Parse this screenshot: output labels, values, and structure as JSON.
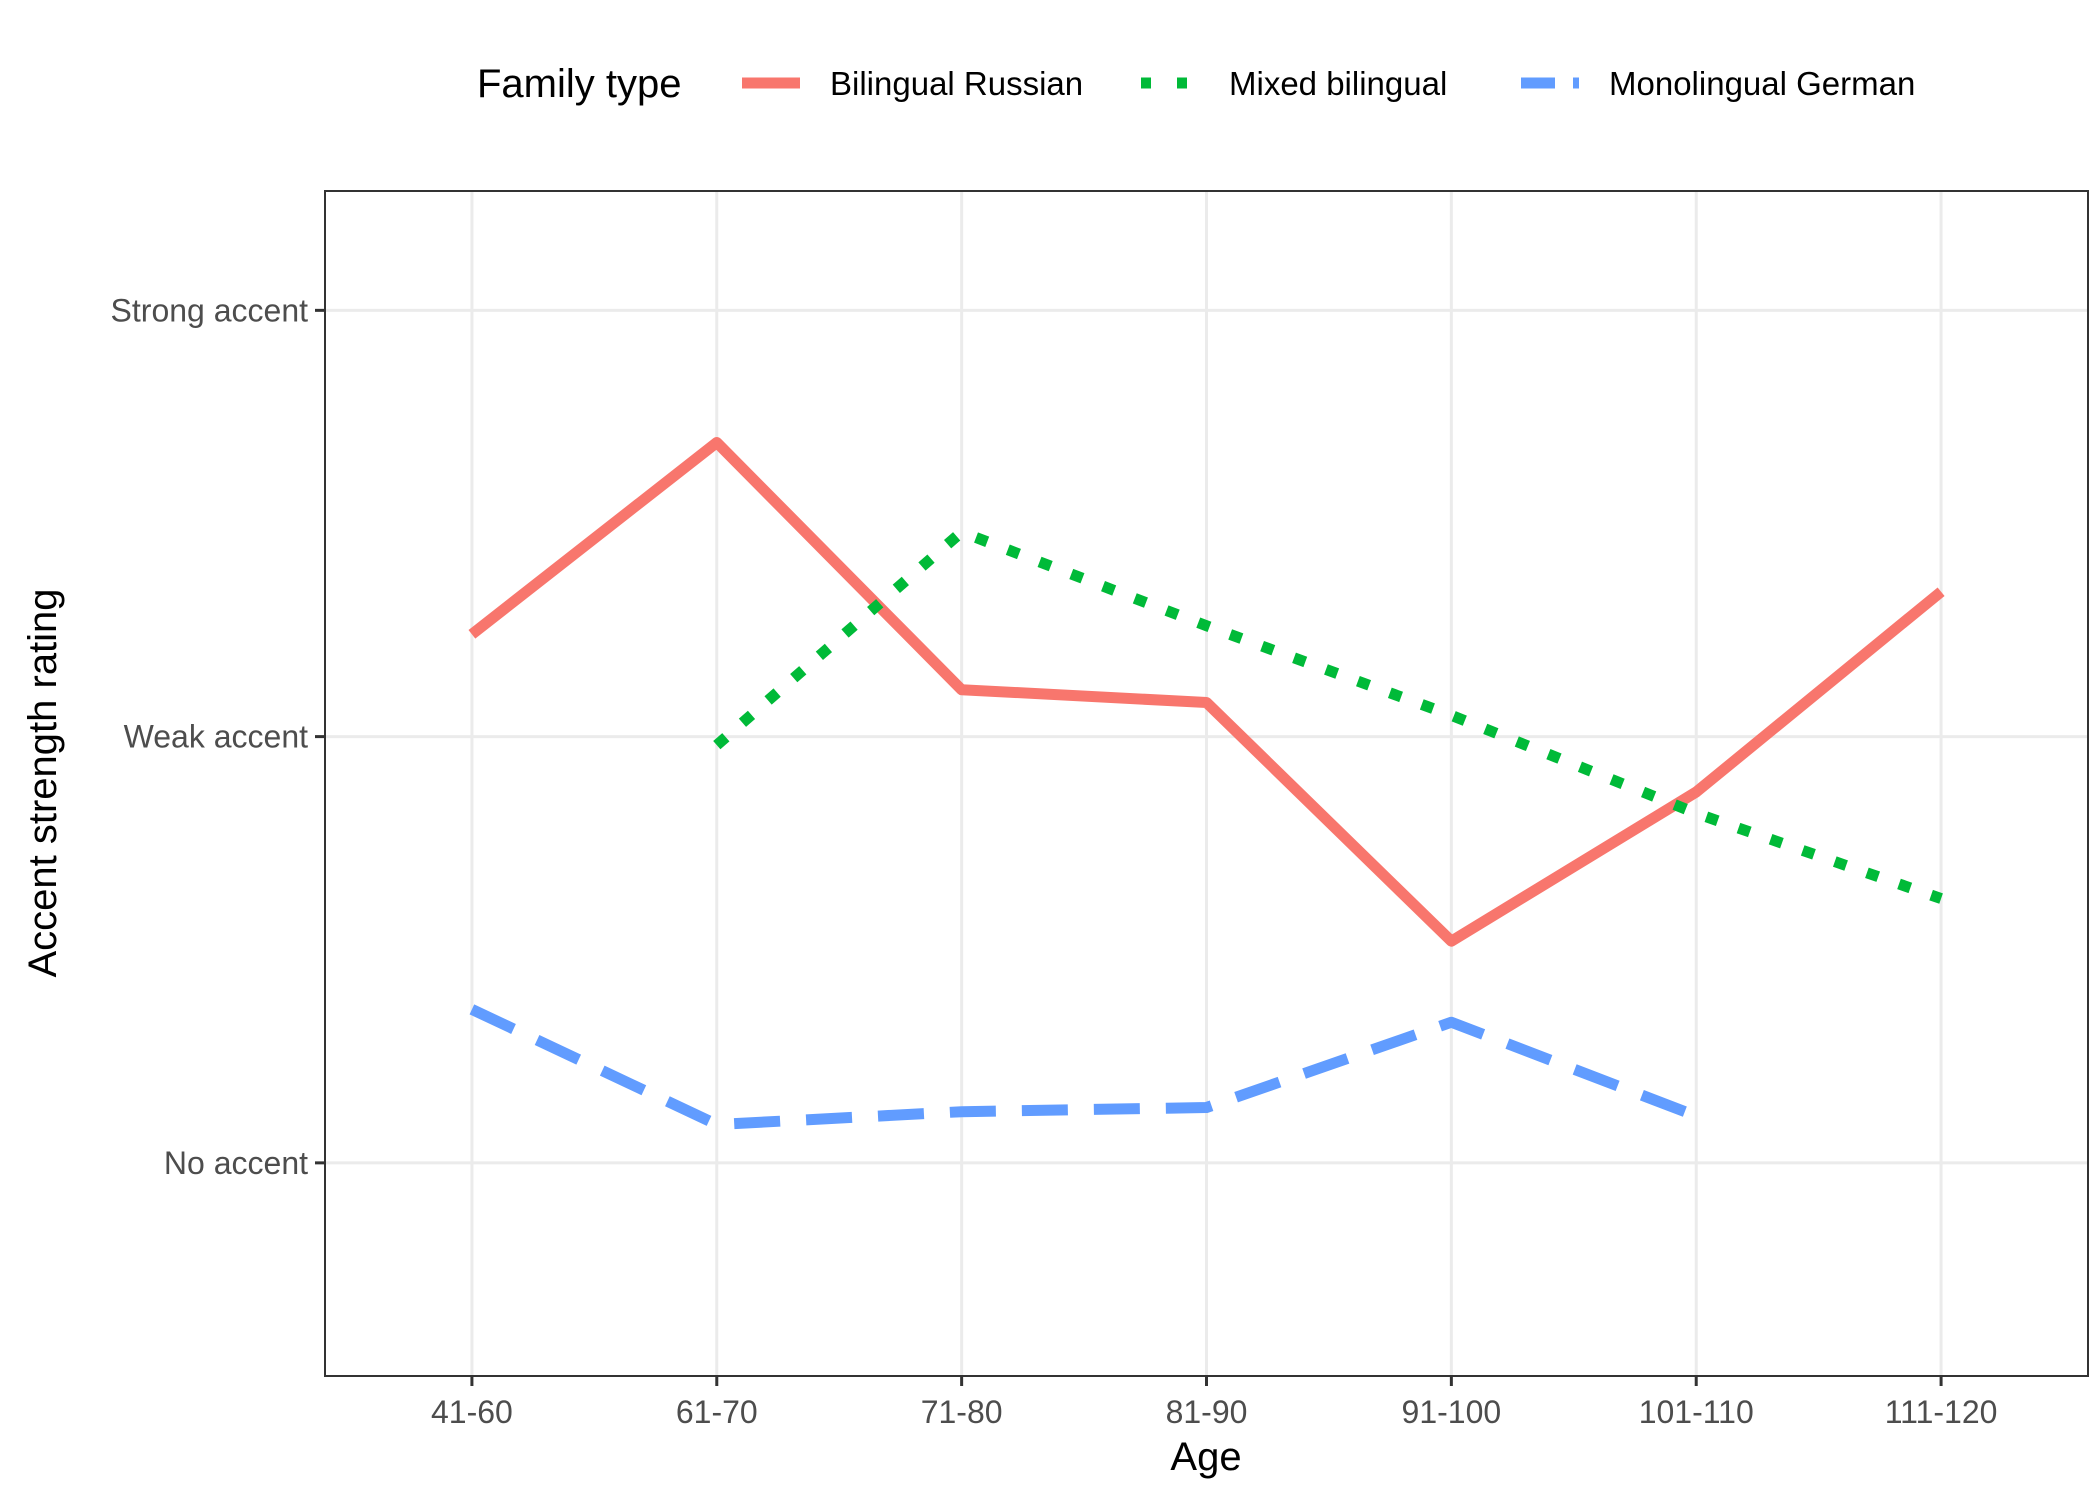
{
  "chart_data": {
    "type": "line",
    "xlabel": "Age",
    "ylabel": "Accent strength rating",
    "categories": [
      "41-60",
      "61-70",
      "71-80",
      "81-90",
      "91-100",
      "101-110",
      "111-120"
    ],
    "y_ticks": [
      {
        "value": 1,
        "label": "No accent"
      },
      {
        "value": 2,
        "label": "Weak accent"
      },
      {
        "value": 3,
        "label": "Strong accent"
      }
    ],
    "ylim": [
      0.5,
      3.28
    ],
    "grid": true,
    "legend": {
      "title": "Family type",
      "placement": "top"
    },
    "series": [
      {
        "name": "Bilingual Russian",
        "color": "#F8766D",
        "dash": "solid",
        "values": [
          2.24,
          2.69,
          2.11,
          2.08,
          1.52,
          1.87,
          2.34
        ]
      },
      {
        "name": "Mixed bilingual",
        "color": "#00BA38",
        "dash": "dotted",
        "values": [
          null,
          1.98,
          2.48,
          2.26,
          2.05,
          1.82,
          1.62
        ]
      },
      {
        "name": "Monolingual German",
        "color": "#619CFF",
        "dash": "dashed",
        "values": [
          1.36,
          1.09,
          1.12,
          1.13,
          1.33,
          1.11,
          null
        ]
      }
    ]
  }
}
